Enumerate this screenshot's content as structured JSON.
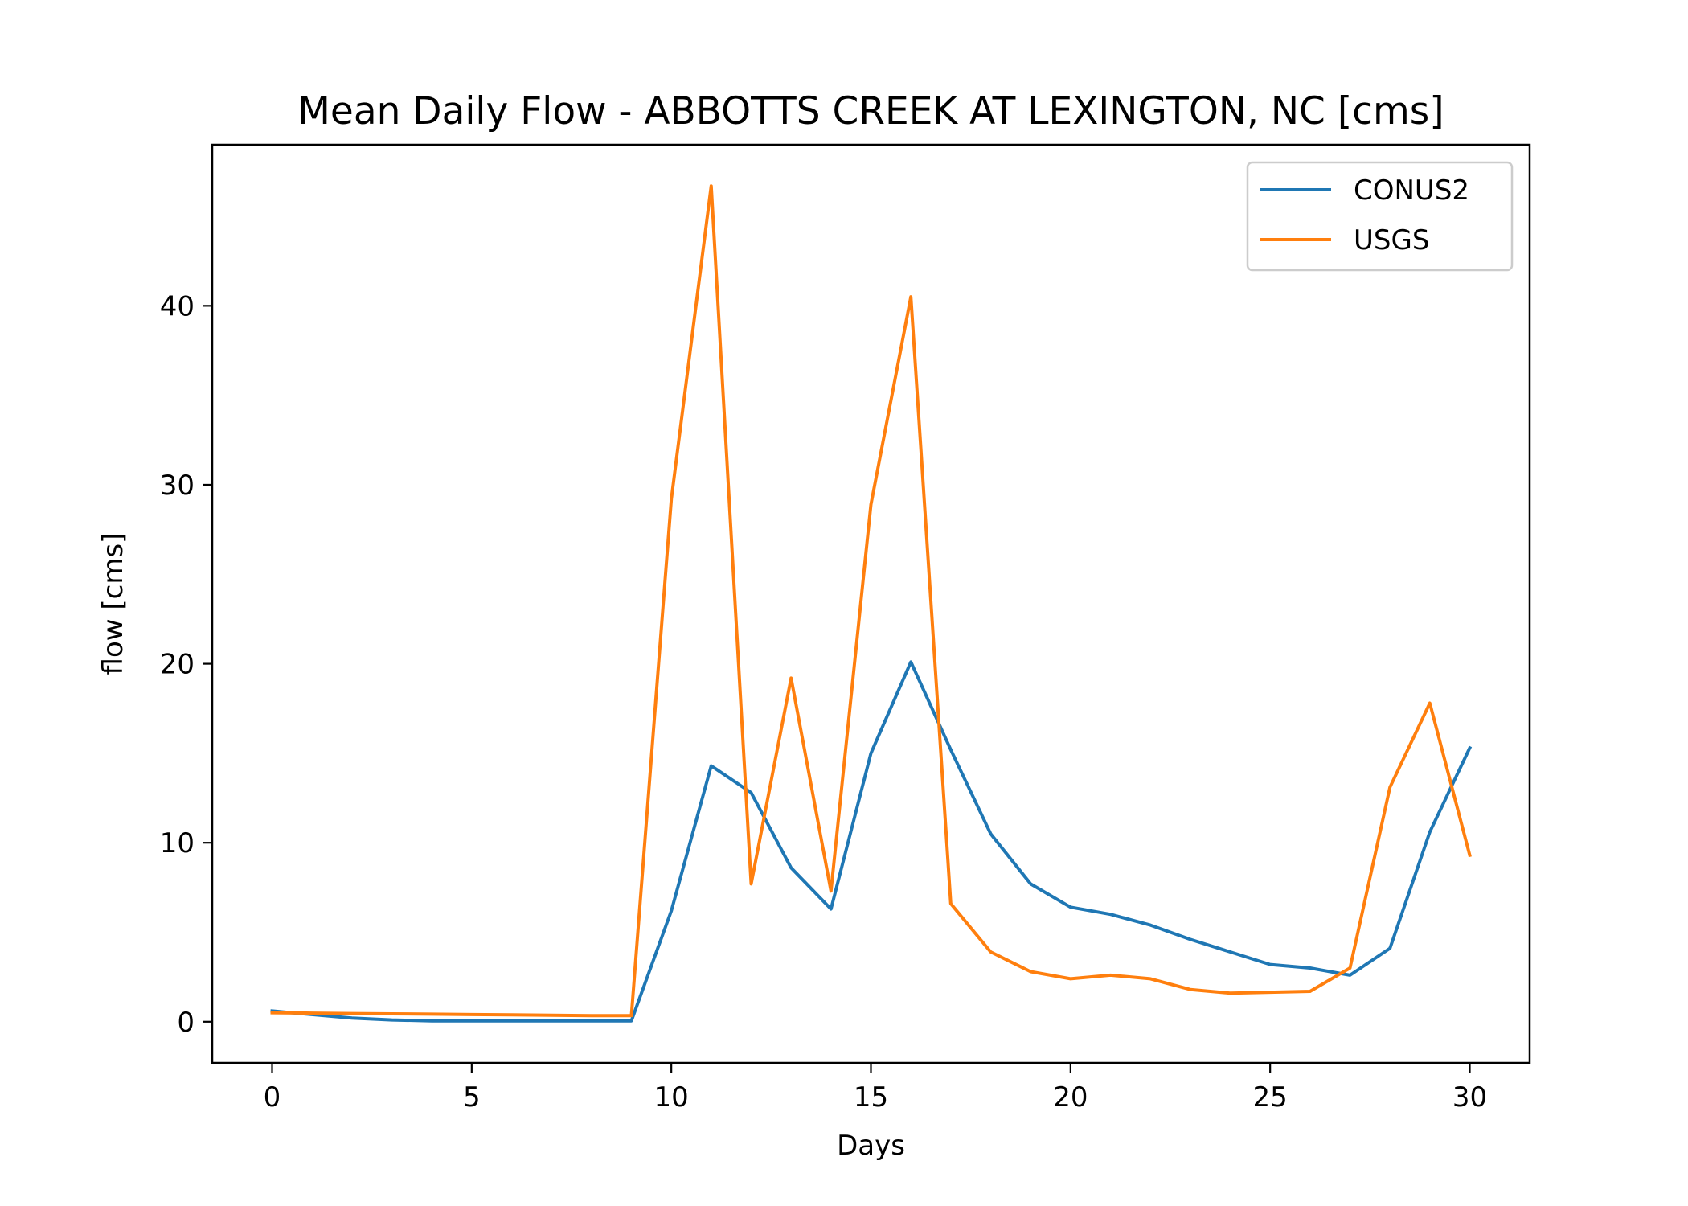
{
  "chart_data": {
    "type": "line",
    "title": "Mean Daily Flow - ABBOTTS CREEK AT LEXINGTON, NC [cms]",
    "xlabel": "Days",
    "ylabel": "flow [cms]",
    "xlim": [
      -1.5,
      31.5
    ],
    "ylim": [
      -2.3,
      49.0
    ],
    "xticks": [
      0,
      5,
      10,
      15,
      20,
      25,
      30
    ],
    "yticks": [
      0,
      10,
      20,
      30,
      40
    ],
    "grid": false,
    "legend_position": "top-right",
    "x": [
      0,
      1,
      2,
      3,
      4,
      5,
      6,
      7,
      8,
      9,
      10,
      11,
      12,
      13,
      14,
      15,
      16,
      17,
      18,
      19,
      20,
      21,
      22,
      23,
      24,
      25,
      26,
      27,
      28,
      29,
      30
    ],
    "series": [
      {
        "name": "CONUS2",
        "color": "#1f77b4",
        "values": [
          0.6,
          0.4,
          0.2,
          0.1,
          0.05,
          0.05,
          0.05,
          0.05,
          0.05,
          0.05,
          6.2,
          14.3,
          12.8,
          8.6,
          6.3,
          15.0,
          20.1,
          15.2,
          10.5,
          7.7,
          6.4,
          6.0,
          5.4,
          4.6,
          3.9,
          3.2,
          3.0,
          2.6,
          4.1,
          10.6,
          15.3
        ]
      },
      {
        "name": "USGS",
        "color": "#ff7f0e",
        "values": [
          0.5,
          0.48,
          0.46,
          0.44,
          0.42,
          0.4,
          0.38,
          0.36,
          0.34,
          0.34,
          29.2,
          46.7,
          7.7,
          19.2,
          7.3,
          28.9,
          40.5,
          6.6,
          3.9,
          2.8,
          2.4,
          2.6,
          2.4,
          1.8,
          1.6,
          1.65,
          1.7,
          3.0,
          13.1,
          17.8,
          9.3
        ]
      }
    ]
  }
}
